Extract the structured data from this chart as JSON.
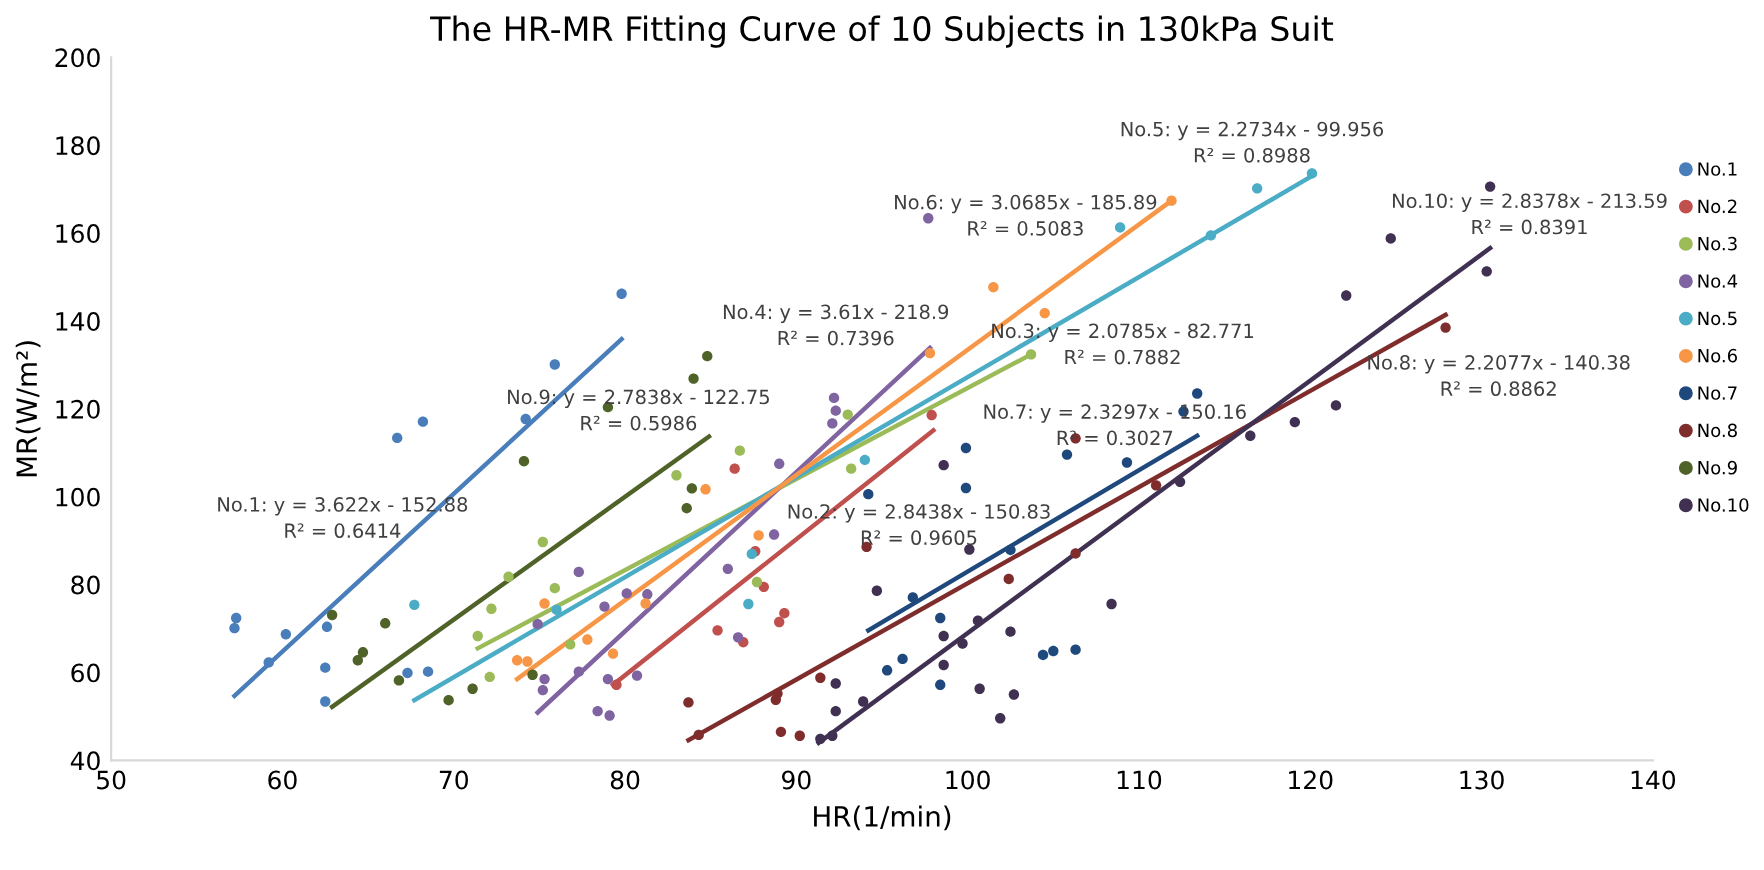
{
  "chart_data": {
    "type": "scatter",
    "title": "The HR-MR Fitting Curve of 10 Subjects in 130kPa Suit",
    "xlabel": "HR(1/min)",
    "ylabel": "MR(W/m²)",
    "xlim": [
      50,
      140
    ],
    "xticks": [
      50,
      60,
      70,
      80,
      90,
      100,
      110,
      120,
      130,
      140
    ],
    "ylim": [
      40,
      200
    ],
    "yticks": [
      40,
      60,
      80,
      100,
      120,
      140,
      160,
      180,
      200
    ],
    "grid": false,
    "legend": "right",
    "marker": "circle",
    "line_style": "solid",
    "series": [
      {
        "name": "No.1",
        "color": "#4a7ebb",
        "x": [
          57.3,
          57.2,
          59.2,
          60.2,
          62.6,
          62.5,
          62.5,
          66.7,
          68.2,
          67.3,
          68.5,
          74.2,
          75.9,
          79.8
        ],
        "values": [
          72.4,
          70.1,
          62.3,
          68.7,
          70.4,
          61.1,
          53.4,
          113.4,
          117.1,
          59.9,
          60.2,
          117.7,
          130.1,
          146.2
        ]
      },
      {
        "name": "No.2",
        "color": "#c0504d",
        "x": [
          79.5,
          85.4,
          86.4,
          86.9,
          87.6,
          88.1,
          89.0,
          89.3,
          97.9
        ],
        "values": [
          57.2,
          69.6,
          106.4,
          66.9,
          87.6,
          79.5,
          71.5,
          73.5,
          118.6
        ]
      },
      {
        "name": "No.3",
        "color": "#9bbb59",
        "x": [
          71.4,
          72.2,
          72.1,
          73.2,
          73.7,
          75.2,
          75.9,
          76.8,
          83.0,
          86.7,
          87.7,
          93.0,
          93.2,
          103.7
        ],
        "values": [
          68.3,
          74.5,
          59.0,
          81.8,
          null,
          89.7,
          79.2,
          66.4,
          104.9,
          110.5,
          80.6,
          118.7,
          106.4,
          132.4
        ]
      },
      {
        "name": "No.4",
        "color": "#8064a2",
        "x": [
          77.3,
          74.9,
          75.3,
          75.2,
          78.4,
          79.1,
          78.8,
          79.0,
          77.3,
          80.1,
          81.3,
          80.7,
          86.0,
          86.6,
          88.7,
          89.0,
          92.2,
          92.3,
          92.1,
          97.7
        ],
        "values": [
          82.9,
          71.0,
          58.5,
          56.0,
          51.2,
          50.2,
          75.0,
          58.5,
          60.2,
          78.0,
          77.8,
          59.3,
          83.6,
          68.0,
          91.4,
          107.5,
          122.5,
          119.6,
          116.7,
          163.4
        ]
      },
      {
        "name": "No.5",
        "color": "#4bacc6",
        "x": [
          67.7,
          76.0,
          87.4,
          87.2,
          94.0,
          108.9,
          116.9,
          114.2,
          120.1
        ],
        "values": [
          75.4,
          74.3,
          87.0,
          75.6,
          108.4,
          161.3,
          170.2,
          159.5,
          173.6
        ]
      },
      {
        "name": "No.6",
        "color": "#f79646",
        "x": [
          73.7,
          74.3,
          75.3,
          77.8,
          79.3,
          81.2,
          84.7,
          87.8,
          97.8,
          101.5,
          104.5,
          111.9
        ],
        "values": [
          62.8,
          62.5,
          75.7,
          67.5,
          64.3,
          75.7,
          101.7,
          91.2,
          132.7,
          147.7,
          141.8,
          167.4
        ]
      },
      {
        "name": "No.7",
        "color": "#1f497d",
        "x": [
          94.2,
          96.8,
          98.4,
          99.9,
          99.9,
          95.3,
          96.2,
          98.4,
          104.4,
          105.0,
          106.3,
          105.8,
          109.3,
          112.6,
          113.4,
          102.5
        ],
        "values": [
          100.6,
          77.1,
          72.4,
          111.1,
          102.0,
          60.5,
          63.1,
          57.2,
          64.0,
          64.9,
          65.2,
          109.6,
          107.8,
          119.4,
          123.5,
          87.9
        ]
      },
      {
        "name": "No.8",
        "color": "#7f2d2c",
        "x": [
          84.3,
          83.7,
          88.8,
          88.9,
          91.4,
          89.1,
          90.2,
          94.1,
          102.4,
          106.3,
          106.3,
          111.0,
          127.9
        ],
        "values": [
          45.8,
          53.2,
          53.8,
          55.2,
          58.8,
          46.5,
          45.6,
          88.6,
          81.3,
          87.1,
          113.3,
          102.6,
          138.5
        ]
      },
      {
        "name": "No.9",
        "color": "#4f6228",
        "x": [
          62.9,
          64.4,
          64.7,
          66.0,
          66.8,
          69.7,
          71.1,
          74.1,
          74.6,
          79.0,
          84.8,
          84.0,
          83.9,
          83.6
        ],
        "values": [
          73.1,
          62.8,
          64.6,
          71.2,
          58.2,
          53.7,
          56.3,
          108.1,
          59.5,
          120.4,
          132.0,
          126.9,
          101.9,
          97.4
        ]
      },
      {
        "name": "No.10",
        "color": "#403152",
        "x": [
          91.4,
          92.1,
          92.3,
          92.3,
          93.9,
          94.7,
          98.6,
          98.6,
          98.6,
          99.7,
          100.1,
          100.7,
          100.6,
          101.9,
          102.5,
          102.7,
          108.4,
          112.4,
          116.5,
          119.1,
          121.5,
          122.1,
          124.7,
          130.3,
          130.5
        ],
        "values": [
          44.9,
          45.6,
          51.2,
          57.5,
          53.4,
          78.6,
          107.2,
          68.3,
          61.7,
          66.6,
          88.0,
          56.3,
          71.8,
          49.6,
          69.3,
          55.0,
          75.6,
          103.4,
          113.9,
          117.0,
          120.8,
          145.8,
          158.8,
          151.3,
          170.6
        ]
      },
      {
        "type": "line",
        "marker": "none",
        "color": "#4a7ebb",
        "x": [
          57.2,
          79.8
        ],
        "values": [
          54.7,
          135.9
        ]
      },
      {
        "type": "line",
        "marker": "none",
        "color": "#c0504d",
        "x": [
          79.3,
          98.0
        ],
        "values": [
          57.2,
          115.1
        ]
      },
      {
        "type": "line",
        "marker": "none",
        "color": "#9bbb59",
        "x": [
          71.4,
          103.7
        ],
        "values": [
          65.5,
          132.4
        ]
      },
      {
        "type": "line",
        "marker": "none",
        "color": "#8064a2",
        "x": [
          74.9,
          97.8
        ],
        "values": [
          50.9,
          133.9
        ]
      },
      {
        "type": "line",
        "marker": "none",
        "color": "#4bacc6",
        "x": [
          67.7,
          120.1
        ],
        "values": [
          53.7,
          173.0
        ]
      },
      {
        "type": "line",
        "marker": "none",
        "color": "#f79646",
        "x": [
          73.7,
          111.9
        ],
        "values": [
          58.5,
          167.4
        ]
      },
      {
        "type": "line",
        "marker": "none",
        "color": "#1f497d",
        "x": [
          94.2,
          113.4
        ],
        "values": [
          69.6,
          113.9
        ]
      },
      {
        "type": "line",
        "marker": "none",
        "color": "#7f2d2c",
        "x": [
          83.7,
          127.9
        ],
        "values": [
          44.6,
          141.4
        ]
      },
      {
        "type": "line",
        "marker": "none",
        "color": "#4f6228",
        "x": [
          62.9,
          84.9
        ],
        "values": [
          52.2,
          113.7
        ]
      },
      {
        "type": "line",
        "marker": "none",
        "color": "#403152",
        "x": [
          91.3,
          130.5
        ],
        "values": [
          44.0,
          156.6
        ]
      }
    ],
    "annotations": [
      "No.1: y = 3.622x - 152.88\nR² = 0.6414",
      "No.2: y = 2.8438x - 150.83\nR² = 0.9605",
      "No.3: y = 2.0785x - 82.771\nR² = 0.7882",
      "No.4: y = 3.61x - 218.9\nR² = 0.7396",
      "No.5: y = 2.2734x - 99.956\nR² = 0.8988",
      "No.6: y = 3.0685x - 185.89\nR² = 0.5083",
      "No.7: y = 2.3297x - 150.16\nR² = 0.3027",
      "No.8: y = 2.2077x - 140.38\nR² = 0.8862",
      "No.9: y = 2.7838x - 122.75\nR² = 0.5986",
      "No.10: y = 2.8378x - 213.59\nR² = 0.8391"
    ]
  }
}
